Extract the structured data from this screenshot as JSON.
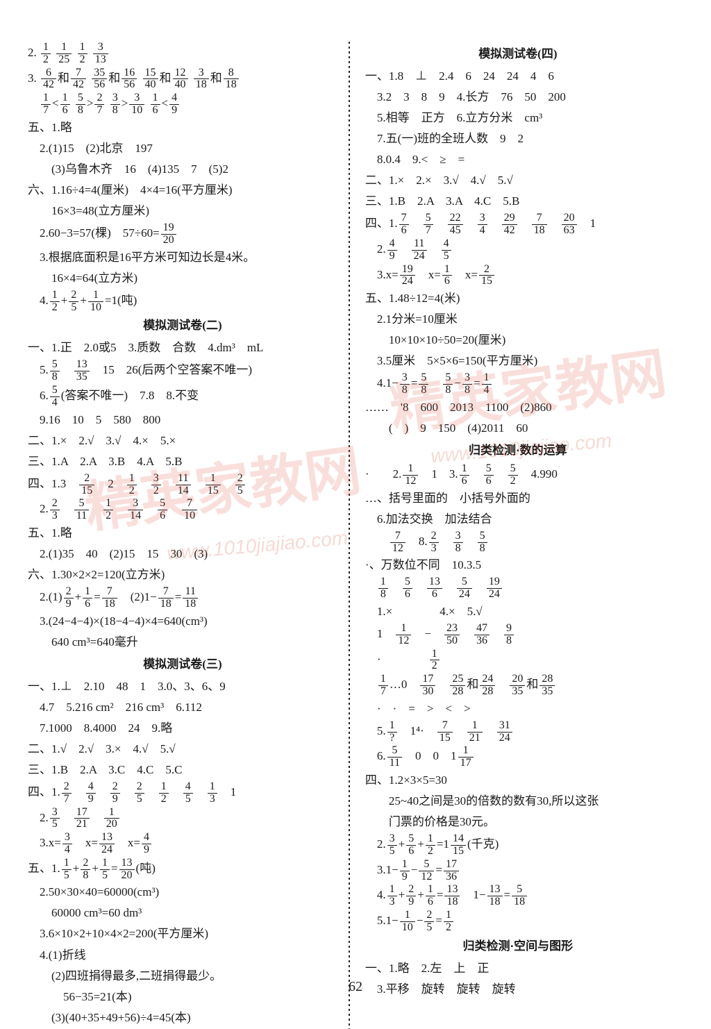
{
  "page_number": "62",
  "watermark_text": "精英家教网",
  "watermark_url": "www.1010jiajiao.com",
  "background_color": "#ffffff",
  "text_color": "#1a1a1a",
  "font_size_pt": 13,
  "left": {
    "l1_prefix": "2.",
    "l1_fracs": [
      [
        "1",
        "2"
      ],
      [
        "1",
        "25"
      ],
      [
        "1",
        "2"
      ],
      [
        "3",
        "13"
      ]
    ],
    "l2_prefix": "3.",
    "l2_groups": [
      {
        "a": [
          "6",
          "42"
        ],
        "j": "和",
        "b": [
          "7",
          "42"
        ]
      },
      {
        "a": [
          "35",
          "56"
        ],
        "j": "和",
        "b": [
          "16",
          "56"
        ]
      },
      {
        "a": [
          "15",
          "40"
        ],
        "j": "和",
        "b": [
          "12",
          "40"
        ]
      },
      {
        "a": [
          "3",
          "18"
        ],
        "j": "和",
        "b": [
          "8",
          "18"
        ]
      }
    ],
    "l3_cmp": [
      {
        "a": [
          "1",
          "7"
        ],
        "op": "<",
        "b": [
          "1",
          "6"
        ]
      },
      {
        "a": [
          "5",
          "8"
        ],
        "op": ">",
        "b": [
          "2",
          "7"
        ]
      },
      {
        "a": [
          "3",
          "8"
        ],
        "op": ">",
        "b": [
          "3",
          "10"
        ]
      },
      {
        "a": [
          "1",
          "6"
        ],
        "op": "<",
        "b": [
          "4",
          "9"
        ]
      }
    ],
    "l4": "五、1.略",
    "l5": "　2.(1)15　(2)北京　197",
    "l6": "　　(3)乌鲁木齐　16　(4)135　7　(5)2",
    "l7": "六、1.16÷4=4(厘米)　4×4=16(平方厘米)",
    "l8": "　　16×3=48(立方厘米)",
    "l9a": "　2.60−3=57(棵)　57÷60=",
    "l9f": [
      "19",
      "20"
    ],
    "l10": "　3.根据底面积是16平方米可知边长是4米。",
    "l11": "　　16×4=64(立方米)",
    "l12a": "　4.",
    "l12p": [
      [
        "1",
        "2"
      ],
      "+",
      [
        "2",
        "5"
      ],
      "+",
      [
        "1",
        "10"
      ],
      "=1(吨)"
    ],
    "h2": "模拟测试卷(二)",
    "l13": "一、1.正　2.0或5　3.质数　合数　4.dm³　mL",
    "l14a": "　5.",
    "l14f": [
      [
        "5",
        "8"
      ],
      [
        "13",
        "35"
      ]
    ],
    "l14b": "　15　26(后两个空答案不唯一)",
    "l15a": "　6.",
    "l15f": [
      "5",
      "4"
    ],
    "l15b": "(答案不唯一)　7.8　8.不变",
    "l16": "　9.16　10　5　580　800",
    "l17": "二、1.×　2.√　3.√　4.×　5.×",
    "l18": "三、1.A　2.A　3.B　4.A　5.B",
    "l19a": "四、1.3　",
    "l19f": [
      [
        "2",
        "15"
      ],
      "2",
      [
        "1",
        "2"
      ],
      [
        "3",
        "2"
      ],
      [
        "11",
        "14"
      ],
      [
        "1",
        "15"
      ],
      [
        "2",
        "5"
      ]
    ],
    "l20a": "　2.",
    "l20f": [
      [
        "2",
        "3"
      ],
      [
        "5",
        "11"
      ],
      [
        "1",
        "2"
      ],
      [
        "3",
        "14"
      ],
      [
        "5",
        "6"
      ],
      [
        "7",
        "10"
      ]
    ],
    "l21": "五、1.略",
    "l22": "　2.(1)35　40　(2)15　15　30　(3)",
    "l23": "六、1.30×2×2=120(立方米)",
    "l24a": "　2.(1)",
    "l24p1": [
      [
        "2",
        "9"
      ],
      "+",
      [
        "1",
        "6"
      ],
      "=",
      [
        "7",
        "18"
      ]
    ],
    "l24b": "　(2)1−",
    "l24p2": [
      [
        "7",
        "18"
      ],
      "=",
      [
        "11",
        "18"
      ]
    ],
    "l25": "　3.(24−4−4)×(18−4−4)×4=640(cm³)",
    "l26": "　　640 cm³=640毫升",
    "h3": "模拟测试卷(三)",
    "l27": "一、1.⊥　2.10　48　1　3.0、3、6、9",
    "l28": "　4.7　5.216 cm²　216 cm³　6.112",
    "l29": "　7.1000　8.4000　24　9.略",
    "l30": "二、1.√　2.√　3.×　4.√　5.√",
    "l31": "三、1.B　2.A　3.C　4.C　5.C",
    "l32a": "四、1.",
    "l32f": [
      [
        "2",
        "7"
      ],
      [
        "4",
        "9"
      ],
      [
        "2",
        "9"
      ],
      [
        "2",
        "5"
      ],
      [
        "1",
        "2"
      ],
      [
        "4",
        "5"
      ],
      [
        "1",
        "3"
      ],
      "1"
    ],
    "l33a": "　2.",
    "l33f": [
      [
        "3",
        "5"
      ],
      [
        "17",
        "21"
      ],
      [
        "1",
        "20"
      ]
    ],
    "l34a": "　3.x=",
    "l34p": [
      [
        "3",
        "4"
      ],
      "　x=",
      [
        "13",
        "24"
      ],
      "　x=",
      [
        "4",
        "9"
      ]
    ],
    "l35a": "五、1.",
    "l35p": [
      [
        "1",
        "5"
      ],
      "+",
      [
        "2",
        "8"
      ],
      "+",
      [
        "1",
        "5"
      ],
      "=",
      [
        "13",
        "20"
      ],
      "(吨)"
    ],
    "l36": "　2.50×30×40=60000(cm³)",
    "l37": "　　60000 cm³=60 dm³",
    "l38": "　3.6×10×2+10×4×2=200(平方厘米)",
    "l39": "　4.(1)折线",
    "l40": "　　(2)四班捐得最多,二班捐得最少。",
    "l41": "　　　56−35=21(本)",
    "l42": "　　(3)(40+35+49+56)÷4=45(本)"
  },
  "right": {
    "h4": "模拟测试卷(四)",
    "r1": "一、1.8　⊥　2.4　6　24　24　4　6",
    "r2": "　3.2　3　8　9　4.长方　76　50　200",
    "r3": "　5.相等　正方　6.立方分米　cm³",
    "r4": "　7.五(一)班的全班人数　9　2",
    "r5": "　8.0.4　9.<　≥　=",
    "r6": "二、1.×　2.×　3.√　4.√　5.√",
    "r7": "三、1.B　2.A　3.A　4.C　5.B",
    "r8a": "四、1.",
    "r8f": [
      [
        "7",
        "6"
      ],
      [
        "5",
        "7"
      ],
      [
        "22",
        "45"
      ],
      [
        "3",
        "4"
      ],
      [
        "29",
        "42"
      ],
      [
        "7",
        "18"
      ],
      [
        "20",
        "63"
      ],
      "1"
    ],
    "r9a": "　2.",
    "r9f": [
      [
        "4",
        "9"
      ],
      [
        "11",
        "24"
      ],
      [
        "4",
        "5"
      ]
    ],
    "r10a": "　3.x=",
    "r10p": [
      [
        "19",
        "24"
      ],
      "　x=",
      [
        "1",
        "6"
      ],
      "　x=",
      [
        "2",
        "15"
      ]
    ],
    "r11": "五、1.48÷12=4(米)",
    "r12": "　2.1分米=10厘米",
    "r13": "　　10×10×10÷50=20(厘米)",
    "r14": "　3.5厘米　5×5×6=150(平方厘米)",
    "r15a": "　4.1−",
    "r15p": [
      [
        "3",
        "8"
      ],
      "=",
      [
        "5",
        "8"
      ],
      "　",
      [
        "5",
        "8"
      ],
      "−",
      [
        "3",
        "8"
      ],
      "=",
      [
        "1",
        "4"
      ]
    ],
    "r16": "……　'8　600　2013　1100　(2)860",
    "r17": "　　(　)　9　150　(4)2011　60",
    "h5": "归类检测·数的运算",
    "r18a": "·　　2.",
    "r18p": [
      [
        "1",
        "12"
      ],
      "　1　3.",
      [
        "1",
        "6"
      ],
      "　",
      [
        "5",
        "6"
      ],
      "　",
      [
        "5",
        "2"
      ],
      "　4.990"
    ],
    "r19": "…、括号里面的　小括号外面的",
    "r20": "　6.加法交换　加法结合",
    "r21a": "　　",
    "r21p": [
      [
        "7",
        "12"
      ],
      "　8.",
      [
        "2",
        "3"
      ],
      "　",
      [
        "3",
        "8"
      ],
      "　",
      [
        "5",
        "8"
      ]
    ],
    "r22": "·、万数位不同　10.3.5",
    "r23a": "　",
    "r23p": [
      [
        "1",
        "8"
      ],
      "　",
      [
        "5",
        "6"
      ],
      "　",
      [
        "13",
        "6"
      ],
      "　",
      [
        "5",
        "24"
      ],
      "　",
      [
        "19",
        "24"
      ]
    ],
    "r24": "　1.×　　　　4.×　5.√",
    "r25a": "　1　",
    "r25p": [
      [
        "1",
        "12"
      ],
      "　−　",
      [
        "23",
        "50"
      ],
      "　",
      [
        "47",
        "36"
      ],
      "　",
      [
        "9",
        "8"
      ]
    ],
    "r26a": "　·　　　　",
    "r26f": [
      "1",
      "2"
    ],
    "r27a": "　",
    "r27p": [
      [
        "1",
        "7"
      ],
      "…0　",
      [
        "17",
        "30"
      ],
      "　",
      [
        "25",
        "28"
      ],
      "和",
      [
        "24",
        "28"
      ],
      "　",
      [
        "20",
        "35"
      ],
      "和",
      [
        "28",
        "35"
      ]
    ],
    "r28": "　·　·　=　>　<　>",
    "r29a": "　5.",
    "r29p": [
      [
        "1",
        "?"
      ],
      "　",
      "1⁴·",
      "　",
      [
        "7",
        "15"
      ],
      "　",
      [
        "1",
        "21"
      ],
      "　",
      [
        "31",
        "24"
      ]
    ],
    "r30a": "　6.",
    "r30p": [
      [
        "5",
        "11"
      ],
      "　0　0　1",
      [
        "1",
        "17"
      ]
    ],
    "r31": "四、1.2×3×5=30",
    "r32": "　　25~40之间是30的倍数的数有30,所以这张",
    "r33": "　　门票的价格是30元。",
    "r34a": "　2.",
    "r34p": [
      [
        "3",
        "5"
      ],
      "+",
      [
        "5",
        "6"
      ],
      "+",
      [
        "1",
        "2"
      ],
      "=1",
      [
        "14",
        "15"
      ],
      "(千克)"
    ],
    "r35a": "　3.1−",
    "r35p": [
      [
        "1",
        "9"
      ],
      "−",
      [
        "5",
        "12"
      ],
      "=",
      [
        "17",
        "36"
      ]
    ],
    "r36a": "　4.",
    "r36p": [
      [
        "1",
        "3"
      ],
      "+",
      [
        "2",
        "9"
      ],
      "+",
      [
        "1",
        "6"
      ],
      "=",
      [
        "13",
        "18"
      ],
      "　1−",
      [
        "13",
        "18"
      ],
      "=",
      [
        "5",
        "18"
      ]
    ],
    "r37a": "　5.1−",
    "r37p": [
      [
        "1",
        "10"
      ],
      "−",
      [
        "2",
        "5"
      ],
      "=",
      [
        "1",
        "2"
      ]
    ],
    "h6": "归类检测·空间与图形",
    "r38": "一、1.略　2.左　上　正",
    "r39": "　3.平移　旋转　旋转　旋转"
  }
}
